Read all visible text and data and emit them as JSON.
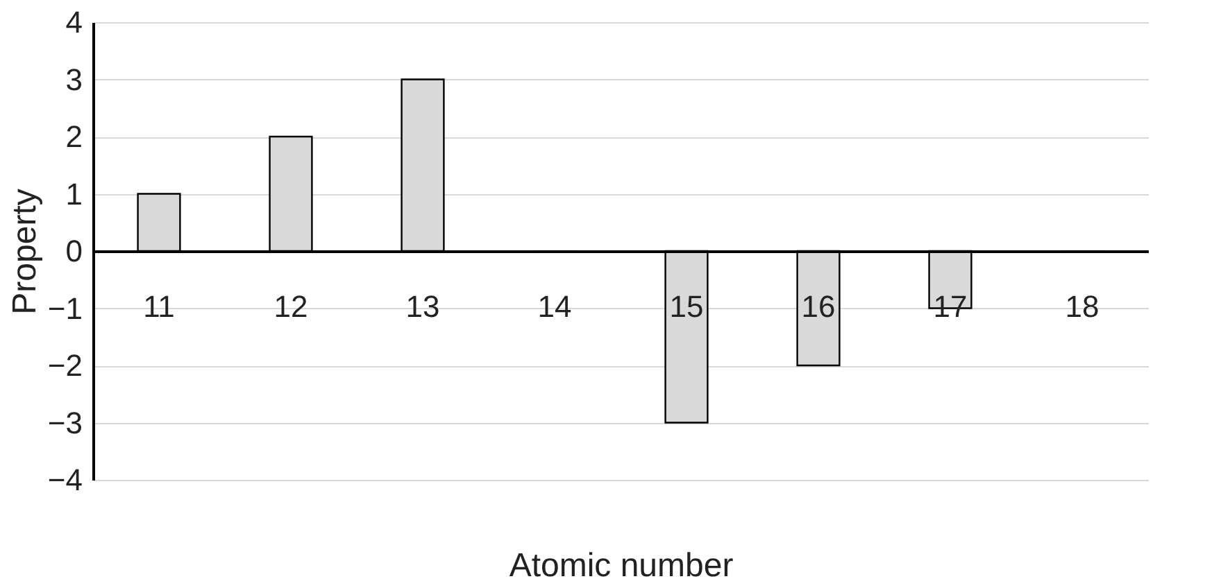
{
  "chart_data": {
    "type": "bar",
    "xlabel": "Atomic number",
    "ylabel": "Property",
    "categories": [
      "11",
      "12",
      "13",
      "14",
      "15",
      "16",
      "17",
      "18"
    ],
    "values": [
      1,
      2,
      3,
      0,
      -3,
      -2,
      -1,
      0
    ],
    "color": "#d9d9d9",
    "ylim": [
      -4,
      4
    ],
    "yticks": [
      -4,
      -3,
      -2,
      -1,
      0,
      1,
      2,
      3,
      4
    ],
    "grid": "y"
  }
}
